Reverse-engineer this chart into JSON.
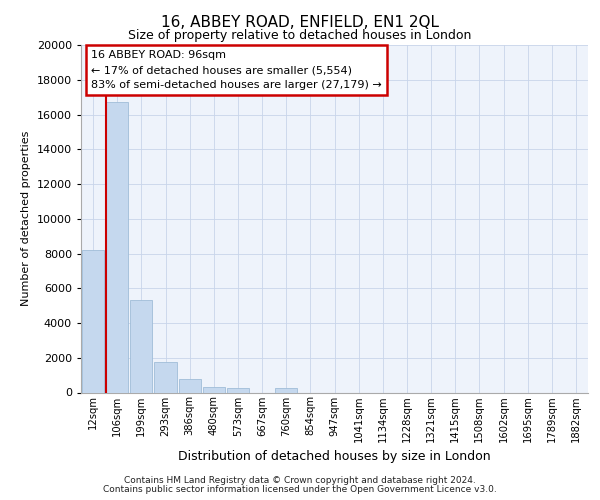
{
  "title1": "16, ABBEY ROAD, ENFIELD, EN1 2QL",
  "title2": "Size of property relative to detached houses in London",
  "xlabel": "Distribution of detached houses by size in London",
  "ylabel": "Number of detached properties",
  "categories": [
    "12sqm",
    "106sqm",
    "199sqm",
    "293sqm",
    "386sqm",
    "480sqm",
    "573sqm",
    "667sqm",
    "760sqm",
    "854sqm",
    "947sqm",
    "1041sqm",
    "1134sqm",
    "1228sqm",
    "1321sqm",
    "1415sqm",
    "1508sqm",
    "1602sqm",
    "1695sqm",
    "1789sqm",
    "1882sqm"
  ],
  "values": [
    8200,
    16700,
    5300,
    1750,
    800,
    300,
    250,
    0,
    250,
    0,
    0,
    0,
    0,
    0,
    0,
    0,
    0,
    0,
    0,
    0,
    0
  ],
  "bar_color": "#c5d8ee",
  "bar_edge_color": "#a0bdd8",
  "marker_color": "#cc0000",
  "annotation_title": "16 ABBEY ROAD: 96sqm",
  "annotation_line1": "← 17% of detached houses are smaller (5,554)",
  "annotation_line2": "83% of semi-detached houses are larger (27,179) →",
  "ylim": [
    0,
    20000
  ],
  "yticks": [
    0,
    2000,
    4000,
    6000,
    8000,
    10000,
    12000,
    14000,
    16000,
    18000,
    20000
  ],
  "footer1": "Contains HM Land Registry data © Crown copyright and database right 2024.",
  "footer2": "Contains public sector information licensed under the Open Government Licence v3.0.",
  "bg_color": "#eef3fb",
  "grid_color": "#c8d5ea"
}
